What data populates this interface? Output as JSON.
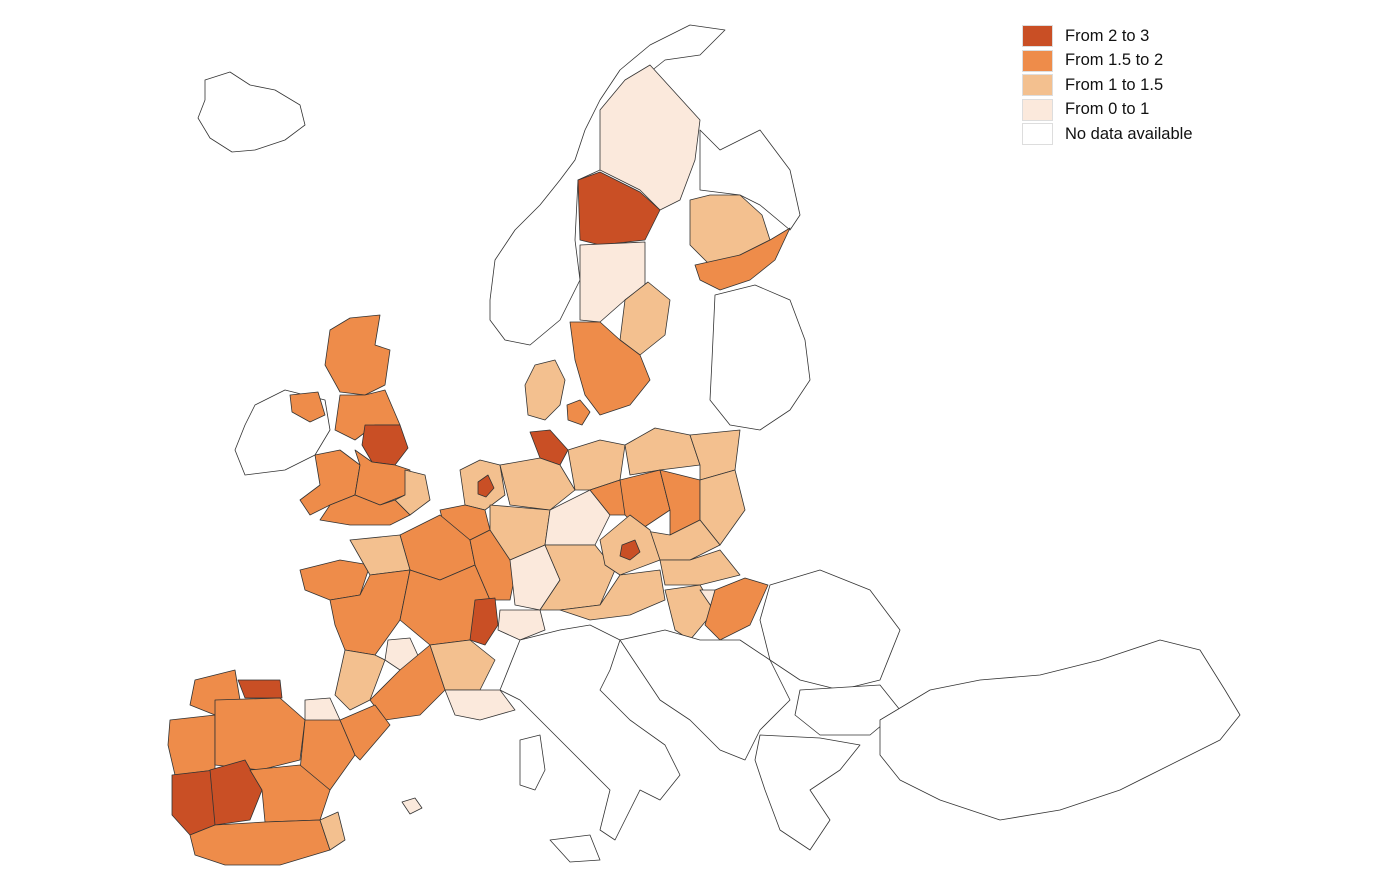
{
  "legend": {
    "items": [
      {
        "label": "From 2 to 3",
        "color": "#c94f25"
      },
      {
        "label": "From 1.5 to 2",
        "color": "#ee8c4a"
      },
      {
        "label": "From 1 to 1.5",
        "color": "#f3c08f"
      },
      {
        "label": "From 0 to 1",
        "color": "#fbe9dc"
      },
      {
        "label": "No data available",
        "color": "#ffffff"
      }
    ]
  }
}
